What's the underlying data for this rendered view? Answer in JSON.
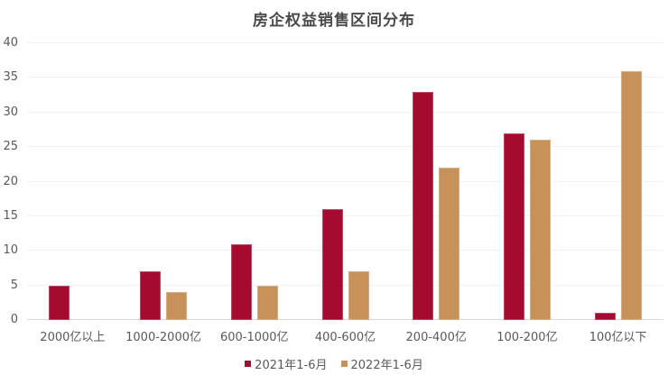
{
  "title": "房企权益销售区间分布",
  "chart_data": {
    "type": "bar",
    "title": "房企权益销售区间分布",
    "categories": [
      "2000亿以上",
      "1000-2000亿",
      "600-1000亿",
      "400-600亿",
      "200-400亿",
      "100-200亿",
      "100亿以下"
    ],
    "series": [
      {
        "name": "2021年1-6月",
        "color": "#a40b2e",
        "values": [
          5,
          7,
          11,
          16,
          33,
          27,
          1
        ]
      },
      {
        "name": "2022年1-6月",
        "color": "#c6925a",
        "values": [
          0,
          4,
          5,
          7,
          22,
          26,
          36
        ]
      }
    ],
    "ylim": [
      0,
      40
    ],
    "yticks": [
      0,
      5,
      10,
      15,
      20,
      25,
      30,
      35,
      40
    ],
    "grid": "horizontal",
    "legend_position": "bottom",
    "colors": {
      "gridline": "#f2f2f2",
      "baseline": "#d9d9d9",
      "axis_text": "#595959",
      "title_text": "#4a4a4a",
      "background": "#ffffff"
    }
  }
}
